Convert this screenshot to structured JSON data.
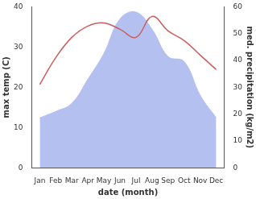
{
  "chart_data": {
    "type": "line",
    "xlabel": "date (month)",
    "ylabel": "max temp (C)",
    "y2label": "med. precipitation (kg/m2)",
    "categories": [
      "Jan",
      "Feb",
      "Mar",
      "Apr",
      "May",
      "Jun",
      "Jul",
      "Aug",
      "Sep",
      "Oct",
      "Nov",
      "Dec"
    ],
    "series": [
      {
        "name": "med. precipitation",
        "type": "area",
        "axis": "y2",
        "color": "#b4c0f0",
        "values": [
          18.6,
          21,
          24,
          33,
          42.6,
          55.5,
          58,
          51.6,
          41.4,
          39.6,
          27,
          18.6
        ]
      },
      {
        "name": "max temp",
        "type": "line",
        "color": "#cd5c5c",
        "values": [
          20.7,
          27.4,
          32.4,
          35.2,
          36,
          34.4,
          32.4,
          37.6,
          34,
          31.6,
          28,
          24.4
        ]
      }
    ],
    "ylim": [
      0,
      40
    ],
    "yticks": [
      0,
      10,
      20,
      30,
      40
    ],
    "y2lim": [
      0,
      60
    ],
    "y2ticks": [
      0,
      10,
      20,
      30,
      40,
      50,
      60
    ],
    "grid": false,
    "legend": false
  }
}
